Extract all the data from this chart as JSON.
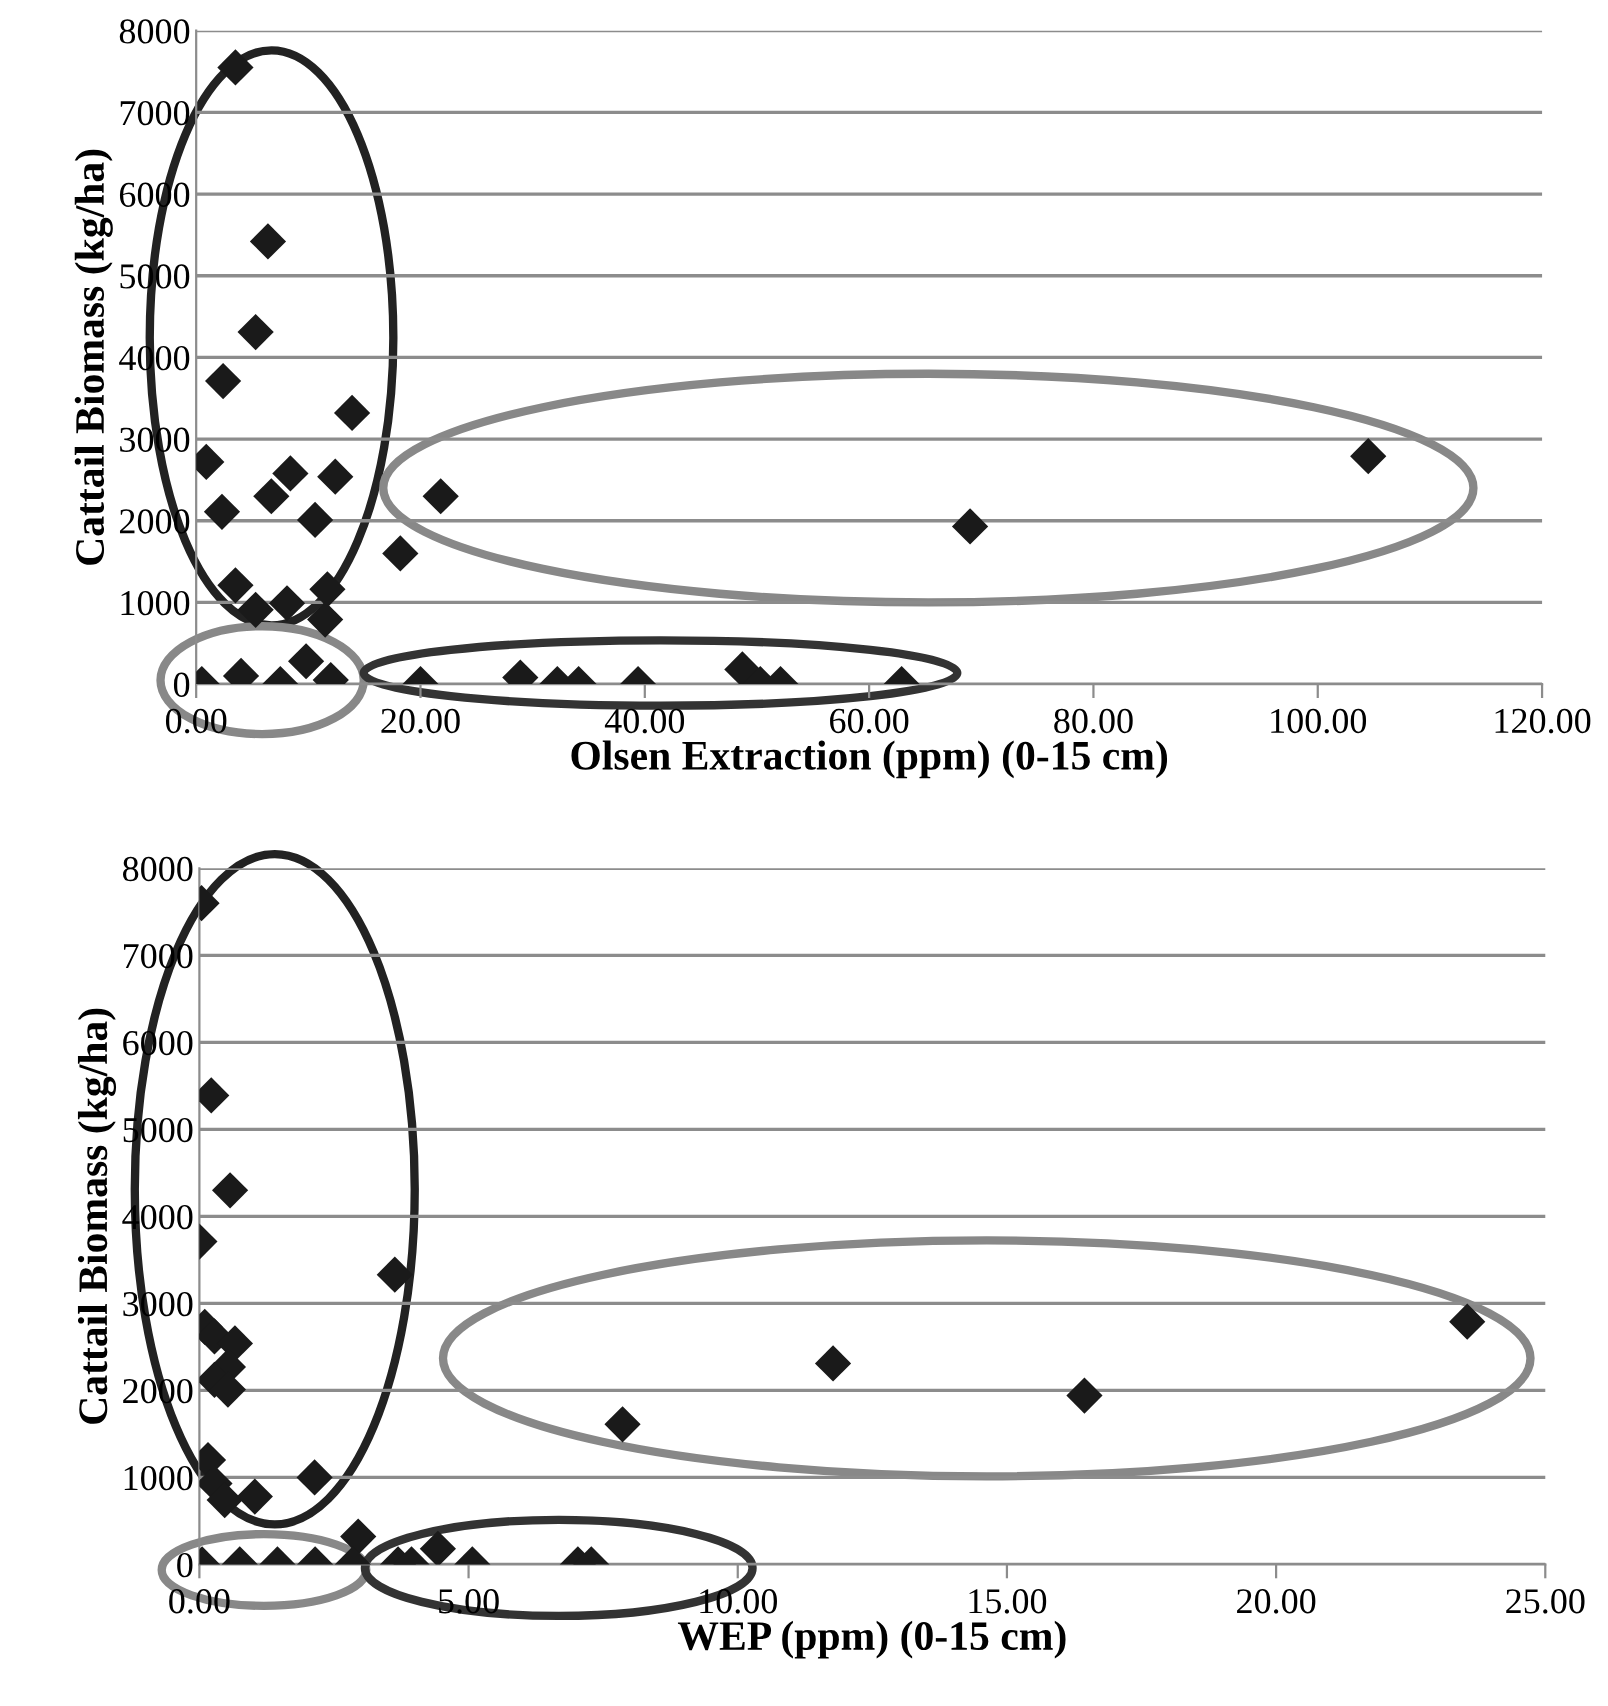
{
  "chart_data": [
    {
      "type": "scatter",
      "xlabel": "Olsen Extraction (ppm) (0-15 cm)",
      "ylabel": "Cattail Biomass (kg/ha)",
      "marker": "diamond",
      "grid": "y",
      "legend": false,
      "xlim": [
        0,
        120
      ],
      "ylim": [
        0,
        8000
      ],
      "xticks": [
        {
          "value": 0,
          "label": "0.00"
        },
        {
          "value": 20,
          "label": "20.00"
        },
        {
          "value": 40,
          "label": "40.00"
        },
        {
          "value": 60,
          "label": "60.00"
        },
        {
          "value": 80,
          "label": "80.00"
        },
        {
          "value": 100,
          "label": "100.00"
        },
        {
          "value": 120,
          "label": "120.00"
        }
      ],
      "yticks": [
        0,
        1000,
        2000,
        3000,
        4000,
        5000,
        6000,
        7000,
        8000
      ],
      "series": [
        {
          "color": "#1a1a1a",
          "x": [
            3.5,
            6.4,
            5.3,
            2.4,
            13.9,
            0.9,
            8.4,
            12.4,
            6.7,
            21.8,
            2.3,
            10.6,
            18.2,
            3.5,
            11.7,
            8.1,
            5.3,
            11.5,
            9.8,
            0.5,
            4.0,
            7.5,
            12.0,
            20.0,
            28.9,
            32.2,
            34.1,
            39.4,
            48.7,
            50.3,
            52.1,
            62.9,
            69.0,
            104.5
          ],
          "values": [
            7550,
            5420,
            4310,
            3710,
            3320,
            2720,
            2580,
            2540,
            2300,
            2300,
            2110,
            2010,
            1600,
            1210,
            1160,
            990,
            910,
            790,
            280,
            0,
            100,
            0,
            50,
            0,
            80,
            0,
            0,
            0,
            180,
            0,
            0,
            0,
            1930,
            2790
          ]
        }
      ]
    },
    {
      "type": "scatter",
      "xlabel": "WEP (ppm) (0-15 cm)",
      "ylabel": "Cattail Biomass (kg/ha)",
      "marker": "diamond",
      "grid": "y",
      "legend": false,
      "xlim": [
        0,
        25
      ],
      "ylim": [
        0,
        8000
      ],
      "xticks": [
        {
          "value": 0,
          "label": "0.00"
        },
        {
          "value": 5,
          "label": "5.00"
        },
        {
          "value": 10,
          "label": "10.00"
        },
        {
          "value": 15,
          "label": "15.00"
        },
        {
          "value": 20,
          "label": "20.00"
        },
        {
          "value": 25,
          "label": "25.00"
        }
      ],
      "yticks": [
        0,
        1000,
        2000,
        3000,
        4000,
        5000,
        6000,
        7000,
        8000
      ],
      "series": [
        {
          "color": "#1a1a1a",
          "x": [
            0.04,
            0.22,
            0.57,
            0.0,
            3.63,
            0.1,
            0.28,
            0.66,
            0.53,
            0.28,
            0.53,
            0.16,
            0.28,
            0.47,
            1.03,
            2.14,
            2.95,
            4.43,
            3.69,
            3.94,
            5.07,
            7.03,
            7.28,
            0.05,
            0.75,
            1.45,
            2.15,
            2.85,
            7.86,
            11.77,
            16.44,
            23.55
          ],
          "values": [
            7600,
            5390,
            4300,
            3710,
            3330,
            2730,
            2620,
            2540,
            2270,
            2120,
            2010,
            1200,
            930,
            740,
            780,
            1000,
            320,
            180,
            0,
            0,
            0,
            0,
            0,
            0,
            0,
            0,
            0,
            0,
            1610,
            2310,
            1940,
            2790
          ]
        }
      ]
    }
  ]
}
